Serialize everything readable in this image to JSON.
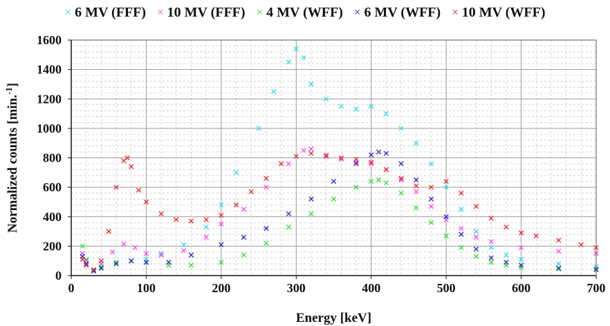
{
  "chart_data": {
    "type": "scatter",
    "title": "",
    "xlabel": "Energy [keV]",
    "ylabel_main": "Normalized counts [min.",
    "ylabel_sup": "-1",
    "ylabel_end": "]",
    "xlim": [
      0,
      700
    ],
    "ylim": [
      0,
      1600
    ],
    "xticks": [
      0,
      100,
      200,
      300,
      400,
      500,
      600,
      700
    ],
    "yticks": [
      0,
      200,
      400,
      600,
      800,
      1000,
      1200,
      1400,
      1600
    ],
    "grid": true,
    "legend_position": "top",
    "marker": "x",
    "series": [
      {
        "name": "6 MV (FFF)",
        "color": "#33dde0",
        "x": [
          15,
          20,
          30,
          40,
          60,
          80,
          100,
          120,
          150,
          180,
          200,
          220,
          250,
          270,
          290,
          300,
          310,
          320,
          340,
          360,
          380,
          400,
          420,
          440,
          460,
          480,
          500,
          520,
          540,
          560,
          580,
          600,
          650,
          700
        ],
        "y": [
          130,
          80,
          35,
          60,
          90,
          100,
          110,
          150,
          210,
          330,
          480,
          700,
          1000,
          1250,
          1450,
          1540,
          1480,
          1300,
          1200,
          1150,
          1130,
          1150,
          1100,
          1000,
          900,
          760,
          600,
          450,
          300,
          190,
          140,
          110,
          80,
          60
        ]
      },
      {
        "name": "10 MV (FFF)",
        "color": "#ff44ee",
        "x": [
          15,
          20,
          30,
          40,
          55,
          70,
          85,
          100,
          120,
          150,
          180,
          200,
          230,
          260,
          290,
          310,
          320,
          340,
          360,
          380,
          400,
          420,
          440,
          460,
          480,
          500,
          520,
          540,
          560,
          600,
          650,
          700
        ],
        "y": [
          150,
          100,
          40,
          80,
          160,
          215,
          190,
          150,
          140,
          170,
          260,
          350,
          450,
          600,
          760,
          850,
          860,
          820,
          790,
          770,
          760,
          720,
          650,
          570,
          470,
          380,
          320,
          260,
          230,
          190,
          165,
          150
        ]
      },
      {
        "name": "4 MV (WFF)",
        "color": "#33dd33",
        "x": [
          15,
          20,
          30,
          40,
          60,
          80,
          100,
          130,
          160,
          200,
          230,
          260,
          290,
          320,
          350,
          380,
          400,
          410,
          420,
          440,
          460,
          480,
          500,
          520,
          540,
          560,
          580,
          600,
          650,
          700
        ],
        "y": [
          200,
          110,
          40,
          60,
          90,
          100,
          90,
          70,
          70,
          90,
          140,
          220,
          330,
          420,
          520,
          600,
          640,
          650,
          630,
          560,
          460,
          360,
          270,
          190,
          130,
          90,
          70,
          55,
          45,
          45
        ]
      },
      {
        "name": "6 MV (WFF)",
        "color": "#2222cc",
        "x": [
          15,
          20,
          30,
          40,
          60,
          80,
          100,
          130,
          160,
          200,
          230,
          260,
          290,
          320,
          350,
          380,
          400,
          410,
          420,
          440,
          460,
          480,
          500,
          520,
          540,
          560,
          580,
          600,
          650,
          700
        ],
        "y": [
          130,
          80,
          30,
          50,
          80,
          100,
          90,
          90,
          140,
          210,
          260,
          320,
          420,
          520,
          640,
          760,
          820,
          840,
          830,
          760,
          650,
          520,
          400,
          280,
          180,
          120,
          90,
          70,
          50,
          40
        ]
      },
      {
        "name": "10 MV (WFF)",
        "color": "#ee2222",
        "x": [
          15,
          20,
          30,
          40,
          50,
          60,
          70,
          75,
          80,
          90,
          100,
          120,
          140,
          160,
          180,
          200,
          220,
          240,
          260,
          280,
          300,
          320,
          340,
          360,
          380,
          400,
          420,
          440,
          460,
          480,
          500,
          520,
          540,
          560,
          580,
          600,
          620,
          650,
          680,
          700
        ],
        "y": [
          110,
          70,
          40,
          100,
          300,
          600,
          780,
          800,
          740,
          580,
          500,
          420,
          380,
          370,
          380,
          410,
          480,
          570,
          660,
          760,
          810,
          830,
          810,
          800,
          790,
          770,
          720,
          660,
          610,
          600,
          640,
          560,
          470,
          390,
          330,
          290,
          270,
          240,
          210,
          190
        ]
      }
    ]
  }
}
